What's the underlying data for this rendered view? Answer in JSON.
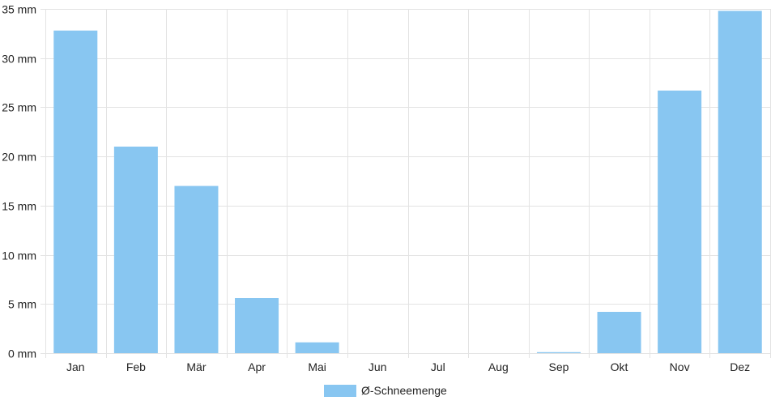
{
  "chart_data": {
    "type": "bar",
    "categories": [
      "Jan",
      "Feb",
      "Mär",
      "Apr",
      "Mai",
      "Jun",
      "Jul",
      "Aug",
      "Sep",
      "Okt",
      "Nov",
      "Dez"
    ],
    "series": [
      {
        "name": "Ø-Schneemenge",
        "values": [
          32.8,
          21.0,
          17.0,
          5.6,
          1.1,
          0,
          0,
          0,
          0.1,
          4.2,
          26.7,
          34.8
        ],
        "color": "#88c6f1"
      }
    ],
    "ylim": [
      0,
      35
    ],
    "y_ticks": [
      0,
      5,
      10,
      15,
      20,
      25,
      30,
      35
    ],
    "y_unit": "mm",
    "grid": true,
    "legend_position": "bottom-center"
  }
}
